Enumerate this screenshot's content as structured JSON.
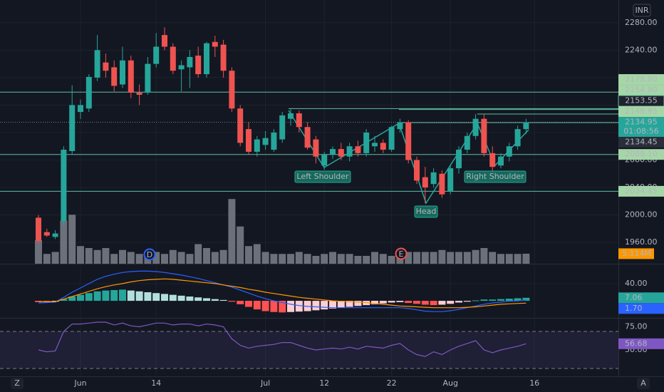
{
  "chart_data": {
    "type": "candlestick",
    "currency": "INR",
    "timezone_button": "Z",
    "auto_scale_button": "A",
    "categories": [
      null,
      null,
      null,
      null,
      null,
      "Jun",
      null,
      null,
      null,
      null,
      null,
      null,
      null,
      null,
      "14",
      null,
      null,
      null,
      null,
      null,
      null,
      null,
      null,
      null,
      null,
      null,
      null,
      "Jul",
      null,
      null,
      null,
      null,
      null,
      null,
      "12",
      null,
      null,
      null,
      null,
      null,
      null,
      null,
      "22",
      null,
      null,
      null,
      null,
      null,
      null,
      "Aug",
      null,
      null,
      null,
      null,
      null,
      null,
      null,
      null,
      null,
      "16"
    ],
    "open": [
      1996,
      1975,
      1968,
      1991,
      2093,
      2150,
      2155,
      2200,
      2222,
      2215,
      2190,
      2225,
      2178,
      2178,
      2220,
      2262,
      2245,
      2212,
      2215,
      2232,
      2205,
      2252,
      2248,
      2210,
      2155,
      2125,
      2092,
      2102,
      2095,
      2110,
      2140,
      2148,
      2128,
      2110,
      2072,
      2088,
      2096,
      2085,
      2100,
      2090,
      2100,
      2105,
      2095,
      2125,
      2135,
      2080,
      2055,
      2045,
      2060,
      2035,
      2068,
      2095,
      2115,
      2140,
      2090,
      2072,
      2085,
      2100,
      2125,
      null
    ],
    "high": [
      2000,
      1980,
      1978,
      2100,
      2189,
      2168,
      2205,
      2262,
      2235,
      2225,
      2245,
      2232,
      2190,
      2230,
      2265,
      2273,
      2250,
      2225,
      2240,
      2245,
      2252,
      2261,
      2255,
      2215,
      2160,
      2135,
      2115,
      2122,
      2125,
      2150,
      2155,
      2152,
      2135,
      2115,
      2092,
      2100,
      2105,
      2105,
      2108,
      2125,
      2115,
      2110,
      2130,
      2140,
      2138,
      2085,
      2070,
      2068,
      2065,
      2072,
      2100,
      2120,
      2147,
      2146,
      2100,
      2090,
      2105,
      2130,
      2140,
      null
    ],
    "low": [
      1958,
      1968,
      1965,
      1985,
      2088,
      2140,
      2150,
      2195,
      2200,
      2180,
      2185,
      2170,
      2160,
      2175,
      2215,
      2240,
      2205,
      2180,
      2185,
      2200,
      2200,
      2230,
      2200,
      2150,
      2100,
      2088,
      2085,
      2095,
      2092,
      2105,
      2130,
      2120,
      2095,
      2075,
      2066,
      2082,
      2080,
      2078,
      2085,
      2085,
      2092,
      2090,
      2092,
      2120,
      2075,
      2045,
      2017,
      2040,
      2025,
      2030,
      2060,
      2090,
      2110,
      2085,
      2060,
      2068,
      2078,
      2095,
      2118,
      null
    ],
    "close": [
      1962,
      1970,
      1973,
      2095,
      2160,
      2160,
      2201,
      2240,
      2210,
      2188,
      2225,
      2178,
      2175,
      2220,
      2245,
      2245,
      2210,
      2218,
      2230,
      2205,
      2250,
      2245,
      2210,
      2155,
      2105,
      2092,
      2110,
      2112,
      2120,
      2145,
      2148,
      2128,
      2098,
      2085,
      2088,
      2096,
      2085,
      2100,
      2090,
      2120,
      2105,
      2095,
      2128,
      2135,
      2080,
      2050,
      2040,
      2062,
      2030,
      2068,
      2095,
      2115,
      2140,
      2090,
      2070,
      2085,
      2100,
      2125,
      2134.95,
      null
    ],
    "up_color": "#26a69a",
    "down_color": "#ef5350",
    "ylim": [
      1929,
      2313
    ],
    "yticks": [
      {
        "value": 1960,
        "label": "1960.00"
      },
      {
        "value": 2000,
        "label": "2000.00"
      },
      {
        "value": 2040,
        "label": "2040.00"
      },
      {
        "value": 2080,
        "label": "2080.00"
      },
      {
        "value": 2120,
        "label": "2120.00"
      },
      {
        "value": 2160,
        "label": "2160.00"
      },
      {
        "value": 2200,
        "label": "2200.00"
      },
      {
        "value": 2240,
        "label": "2240.00"
      },
      {
        "value": 2280,
        "label": "2280.00"
      }
    ],
    "grid": true,
    "line_color": "#5fbfa0",
    "levels": [
      {
        "value": 2178.8,
        "label": "2178.80",
        "bg": "#a5d6a7",
        "fg": "#131722"
      },
      {
        "value": 2154.8,
        "label": "2154.80",
        "bg": "#a5d6a7",
        "fg": "#131722"
      },
      {
        "value": 2153.55,
        "label": "2153.55",
        "bg": "#1e222d",
        "fg": "#d1d4dc"
      },
      {
        "value": 2146.95,
        "label": "2146.95",
        "bg": "#a5d6a7",
        "fg": "#131722"
      },
      {
        "value": 2134.95,
        "label": "2134.95",
        "bg": "#26a69a",
        "fg": "#ffffff",
        "style": "dotted"
      },
      {
        "value": 2134.45,
        "label": "2134.45",
        "bg": "#2a2e39",
        "fg": "#d1d4dc"
      },
      {
        "value": 2088.1,
        "label": "2088.10",
        "bg": "#a5d6a7",
        "fg": "#131722"
      },
      {
        "value": 2034.45,
        "label": "2034.45",
        "bg": "#a5d6a7",
        "fg": "#131722"
      }
    ],
    "countdown": "01:08:56",
    "annotations": [
      "Left Shoulder",
      "Head",
      "Right Shoulder"
    ],
    "events": [
      "D",
      "E"
    ],
    "volume": {
      "values": [
        12,
        5,
        6,
        22,
        25,
        9,
        8,
        7,
        8,
        5,
        7,
        6,
        5,
        6,
        6,
        5,
        7,
        6,
        5,
        10,
        8,
        6,
        7,
        33,
        19,
        9,
        10,
        6,
        5,
        5,
        5,
        6,
        5,
        4,
        5,
        6,
        5,
        5,
        4,
        4,
        6,
        5,
        4,
        7,
        6,
        6,
        6,
        6,
        7,
        6,
        6,
        6,
        7,
        8,
        6,
        5,
        5,
        5,
        5.114,
        null
      ],
      "color": "#7d808a",
      "ylim": [
        0,
        40
      ],
      "last": {
        "value": 5.114,
        "label": "5.114M"
      }
    },
    "macd": {
      "histogram": [
        -3,
        -3,
        -2,
        4,
        10,
        14,
        18,
        22,
        24,
        25,
        26,
        24,
        22,
        20,
        18,
        16,
        14,
        12,
        10,
        8,
        6,
        4,
        2,
        -2,
        -8,
        -14,
        -20,
        -24,
        -26,
        -27,
        -26,
        -25,
        -24,
        -22,
        -20,
        -18,
        -16,
        -14,
        -12,
        -10,
        -8,
        -6,
        -4,
        -3,
        -5,
        -7,
        -9,
        -10,
        -9,
        -7,
        -4,
        -2,
        1,
        3,
        3,
        4,
        5,
        6,
        7.06,
        null
      ],
      "macd": [
        -5,
        -4,
        -3,
        8,
        20,
        30,
        40,
        50,
        57,
        62,
        66,
        68,
        69,
        69,
        68,
        66,
        63,
        60,
        56,
        52,
        47,
        42,
        37,
        32,
        25,
        18,
        11,
        5,
        0,
        -4,
        -8,
        -11,
        -13,
        -14,
        -15,
        -16,
        -16,
        -16,
        -16,
        -16,
        -16,
        -16,
        -16,
        -16,
        -18,
        -21,
        -24,
        -25,
        -25,
        -23,
        -20,
        -16,
        -12,
        -8,
        -5,
        -3,
        -1,
        0,
        1.7,
        null
      ],
      "signal": [
        -2,
        -2,
        -2,
        4,
        10,
        16,
        22,
        28,
        33,
        37,
        40,
        44,
        47,
        49,
        50,
        51,
        50,
        48,
        46,
        44,
        42,
        40,
        37,
        34,
        31,
        27,
        24,
        20,
        17,
        14,
        11,
        8,
        6,
        4,
        2,
        0,
        -1,
        -2,
        -3,
        -4,
        -6,
        -8,
        -10,
        -12,
        -13,
        -14,
        -15,
        -16,
        -16,
        -16,
        -16,
        -15,
        -14,
        -12,
        -10,
        -8,
        -7,
        -6,
        -5.36,
        null
      ],
      "histogram_colors": [
        "#26a69a",
        "#b2dfdb",
        "#ff5252",
        "#ffcdd2"
      ],
      "macd_color": "#2962ff",
      "signal_color": "#ff9800",
      "ylim": [
        -38,
        83
      ],
      "yticks": [
        {
          "value": 40,
          "label": "40.00"
        }
      ],
      "last_labels": [
        {
          "value": 7.06,
          "label": "7.06",
          "color": "#26a69a"
        },
        {
          "value": 1.7,
          "label": "1.70",
          "color": "#2962ff"
        }
      ]
    },
    "rsi": {
      "values": [
        50,
        48,
        49,
        70,
        78,
        78,
        79,
        80,
        80,
        77,
        79,
        76,
        75,
        77,
        79,
        79,
        77,
        78,
        78,
        76,
        78,
        77,
        75,
        62,
        55,
        52,
        54,
        55,
        56,
        58,
        58,
        55,
        52,
        50,
        51,
        52,
        51,
        53,
        51,
        54,
        53,
        52,
        55,
        57,
        50,
        45,
        43,
        48,
        45,
        50,
        54,
        57,
        60,
        50,
        47,
        50,
        52,
        54,
        56.68,
        null
      ],
      "color": "#7e57c2",
      "ylim": [
        21.5,
        83.1
      ],
      "yticks": [
        {
          "value": 75,
          "label": "75.00"
        },
        {
          "value": 50,
          "label": "50.00"
        }
      ],
      "bands": [
        70,
        30
      ]
    }
  }
}
